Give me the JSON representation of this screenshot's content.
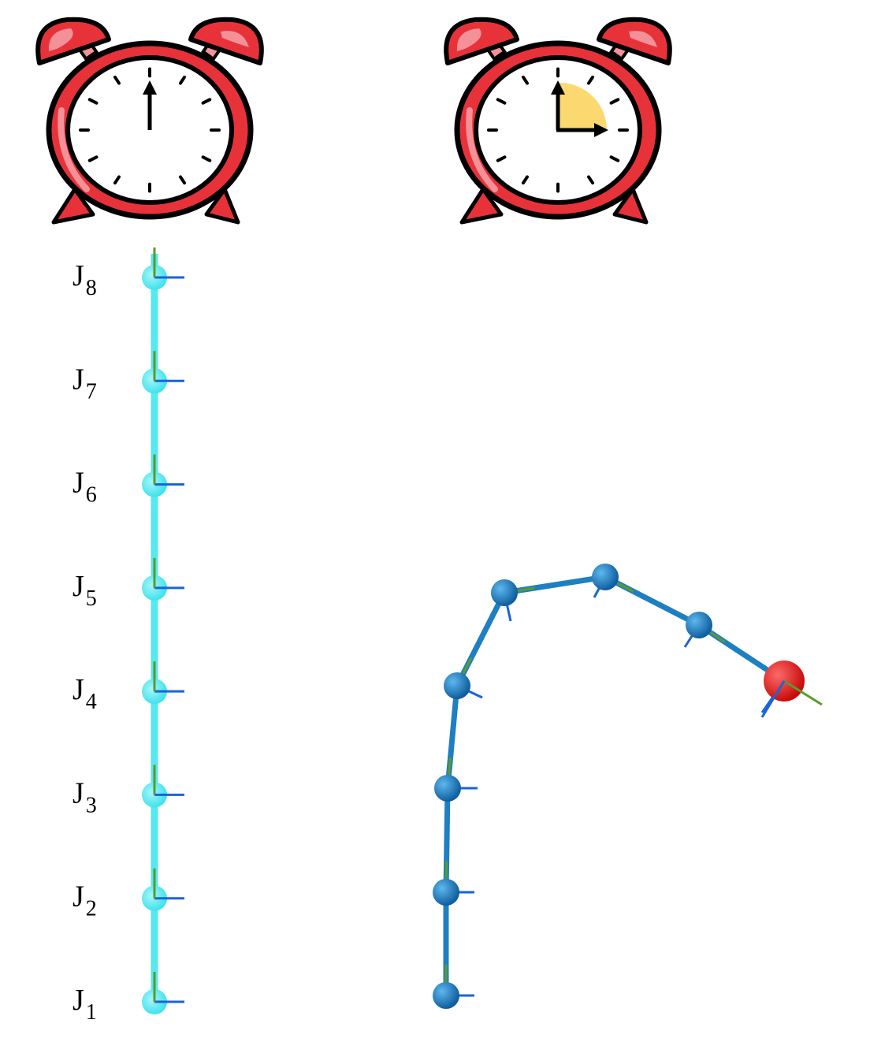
{
  "clocks": [
    {
      "name": "clock-start",
      "hands": [
        "up"
      ],
      "sector": false
    },
    {
      "name": "clock-quarter",
      "hands": [
        "up",
        "right"
      ],
      "sector": true,
      "sector_color": "#FCD870"
    }
  ],
  "colors": {
    "clock_red": "#E8323A",
    "clock_red_light": "#F49098",
    "chain_straight": "#55E9F0",
    "chain_bent": "#1E7FC2",
    "end_joint": "#E81818",
    "axis_blue": "#1B63D8",
    "axis_green": "#5A9B2A"
  },
  "joints": [
    {
      "letter": "J",
      "sub": "1"
    },
    {
      "letter": "J",
      "sub": "2"
    },
    {
      "letter": "J",
      "sub": "3"
    },
    {
      "letter": "J",
      "sub": "4"
    },
    {
      "letter": "J",
      "sub": "5"
    },
    {
      "letter": "J",
      "sub": "6"
    },
    {
      "letter": "J",
      "sub": "7"
    },
    {
      "letter": "J",
      "sub": "8"
    }
  ]
}
